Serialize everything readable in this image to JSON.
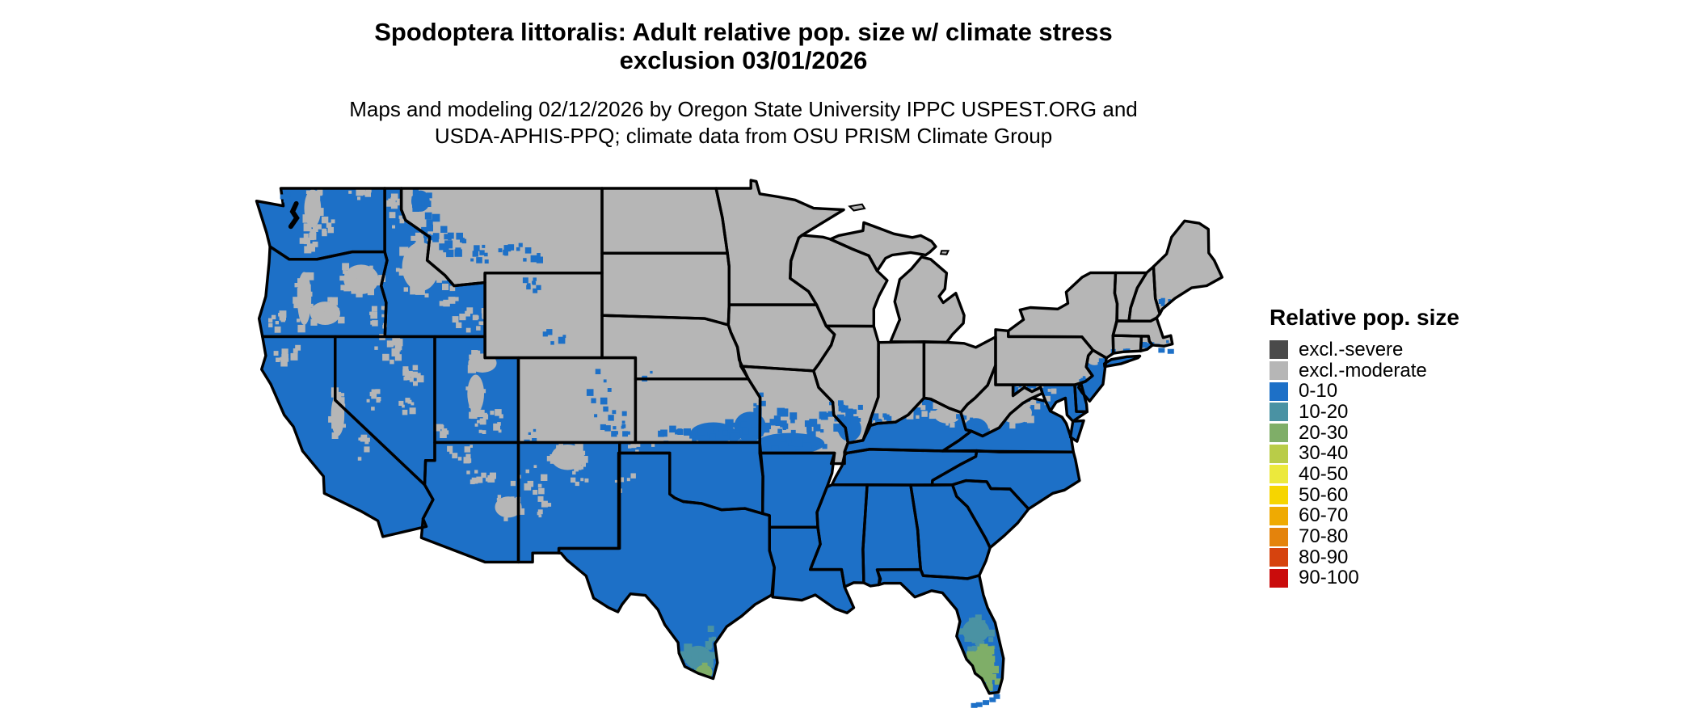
{
  "title": {
    "line1": "Spodoptera littoralis: Adult relative pop. size w/ climate stress",
    "line2": "exclusion 03/01/2026"
  },
  "subtitle": {
    "line1": "Maps and modeling 02/12/2026 by Oregon State University IPPC USPEST.ORG and",
    "line2": "USDA-APHIS-PPQ; climate data from OSU PRISM Climate Group"
  },
  "legend": {
    "title": "Relative pop. size",
    "items": [
      {
        "label": "excl.-severe",
        "color": "#4a4a4a"
      },
      {
        "label": "excl.-moderate",
        "color": "#b6b6b6"
      },
      {
        "label": "0-10",
        "color": "#1d70c7"
      },
      {
        "label": "10-20",
        "color": "#4a92a3"
      },
      {
        "label": "20-30",
        "color": "#7fae68"
      },
      {
        "label": "30-40",
        "color": "#b9cc48"
      },
      {
        "label": "40-50",
        "color": "#ece93c"
      },
      {
        "label": "50-60",
        "color": "#f6d500"
      },
      {
        "label": "60-70",
        "color": "#efaa02"
      },
      {
        "label": "70-80",
        "color": "#e4830c"
      },
      {
        "label": "80-90",
        "color": "#d6430e"
      },
      {
        "label": "90-100",
        "color": "#ca0c0c"
      }
    ]
  },
  "map": {
    "background": "#ffffff",
    "border_color": "#000000",
    "classes": {
      "excluded_moderate": {
        "label": "excl.-moderate",
        "color": "#b6b6b6",
        "states": [
          "Montana",
          "Wyoming",
          "Colorado",
          "North Dakota",
          "South Dakota",
          "Nebraska",
          "Kansas",
          "Minnesota",
          "Iowa",
          "Missouri",
          "Wisconsin",
          "Illinois",
          "Indiana",
          "Ohio",
          "Michigan",
          "New York",
          "Pennsylvania",
          "West Virginia",
          "Vermont",
          "New Hampshire",
          "Maine",
          "Massachusetts",
          "Rhode Island",
          "Connecticut"
        ]
      },
      "pop_0_10": {
        "label": "0-10",
        "color": "#1d70c7",
        "states": [
          "Washington",
          "Oregon",
          "California",
          "Nevada",
          "Idaho",
          "Utah",
          "Arizona",
          "New Mexico",
          "Texas",
          "Oklahoma",
          "Louisiana",
          "Arkansas",
          "Mississippi",
          "Alabama",
          "Georgia",
          "Florida",
          "South Carolina",
          "North Carolina",
          "Tennessee",
          "Kentucky",
          "Virginia",
          "Maryland",
          "Delaware",
          "New Jersey",
          "Long Island NY"
        ]
      },
      "pop_10_20": {
        "label": "10-20",
        "color": "#4a92a3",
        "areas": [
          "southern tip of Texas",
          "central Florida"
        ]
      },
      "pop_20_30": {
        "label": "20-30",
        "color": "#7fae68",
        "areas": [
          "lower Rio Grande valley Texas",
          "south Florida"
        ]
      }
    }
  }
}
